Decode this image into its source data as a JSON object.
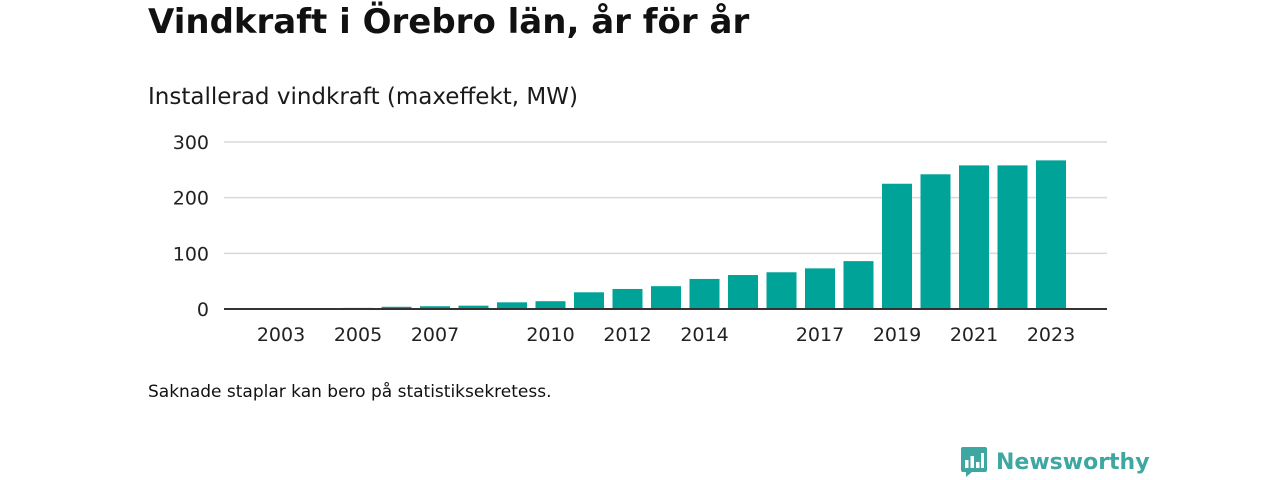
{
  "title": "Vindkraft i Örebro län, år för år",
  "subtitle": "Installerad vindkraft (maxeffekt, MW)",
  "note": "Saknade staplar kan bero på statistiksekretess.",
  "brand": {
    "name": "Newsworthy",
    "color": "#3fa7a1",
    "icon": "bar-chart-speech-bubble-icon"
  },
  "colors": {
    "bar": "#00a398",
    "grid": "#d9d9d9",
    "axis": "#333333"
  },
  "chart_data": {
    "type": "bar",
    "title": "Installerad vindkraft (maxeffekt, MW)",
    "xlabel": "",
    "ylabel": "",
    "categories": [
      "2002",
      "2003",
      "2004",
      "2005",
      "2006",
      "2007",
      "2008",
      "2009",
      "2010",
      "2011",
      "2012",
      "2013",
      "2014",
      "2015",
      "2016",
      "2017",
      "2018",
      "2019",
      "2020",
      "2021",
      "2022",
      "2023"
    ],
    "values": [
      1,
      1,
      1,
      2,
      4,
      5,
      6,
      12,
      14,
      30,
      36,
      41,
      54,
      61,
      66,
      73,
      86,
      225,
      242,
      258,
      258,
      267
    ],
    "x_tick_labels": [
      "2003",
      "2005",
      "2007",
      "2010",
      "2012",
      "2014",
      "2017",
      "2019",
      "2021",
      "2023"
    ],
    "y_ticks": [
      0,
      100,
      200,
      300
    ],
    "ylim": [
      0,
      300
    ],
    "grid": true,
    "legend": "none"
  }
}
